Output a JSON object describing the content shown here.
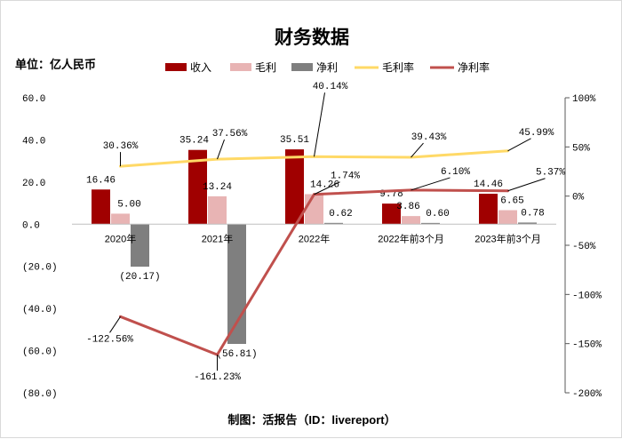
{
  "chart_data": {
    "type": "bar",
    "title": "财务数据",
    "unit_label": "单位：亿人民币",
    "source": "制图：活报告（ID：livereport）",
    "categories": [
      "2020年",
      "2021年",
      "2022年",
      "2022年前3个月",
      "2023年前3个月"
    ],
    "series": [
      {
        "name": "收入",
        "kind": "bar",
        "axis": "left",
        "color": "#a00000",
        "values": [
          16.46,
          35.24,
          35.51,
          9.78,
          14.46
        ],
        "labels": [
          "16.46",
          "35.24",
          "35.51",
          "9.78",
          "14.46"
        ]
      },
      {
        "name": "毛利",
        "kind": "bar",
        "axis": "left",
        "color": "#e8b4b4",
        "values": [
          5.0,
          13.24,
          14.26,
          3.86,
          6.65
        ],
        "labels": [
          "5.00",
          "13.24",
          "14.26",
          "3.86",
          "6.65"
        ]
      },
      {
        "name": "净利",
        "kind": "bar",
        "axis": "left",
        "color": "#7f7f7f",
        "values": [
          -20.17,
          -56.81,
          0.62,
          0.6,
          0.78
        ],
        "labels": [
          "(20.17)",
          "(56.81)",
          "0.62",
          "0.60",
          "0.78"
        ]
      },
      {
        "name": "毛利率",
        "kind": "line",
        "axis": "right",
        "color": "#ffd966",
        "values": [
          30.36,
          37.56,
          40.14,
          39.43,
          45.99
        ],
        "labels": [
          "30.36%",
          "37.56%",
          "40.14%",
          "39.43%",
          "45.99%"
        ]
      },
      {
        "name": "净利率",
        "kind": "line",
        "axis": "right",
        "color": "#c0504d",
        "values": [
          -122.56,
          -161.23,
          1.74,
          6.1,
          5.37
        ],
        "labels": [
          "-122.56%",
          "-161.23%",
          "1.74%",
          "6.10%",
          "5.37%"
        ]
      }
    ],
    "y_left": {
      "ylim": [
        -80,
        60
      ],
      "ticks": [
        60,
        40,
        20,
        0,
        -20,
        -40,
        -60,
        -80
      ],
      "tick_labels": [
        "60.0",
        "40.0",
        "20.0",
        "0.0",
        "(20.0)",
        "(40.0)",
        "(60.0)",
        "(80.0)"
      ]
    },
    "y_right": {
      "ylim": [
        -200,
        100
      ],
      "ticks": [
        100,
        50,
        0,
        -50,
        -100,
        -150,
        -200
      ],
      "tick_labels": [
        "100%",
        "50%",
        "0%",
        "-50%",
        "-100%",
        "-150%",
        "-200%"
      ]
    },
    "legend_position": "top",
    "grid": false
  }
}
